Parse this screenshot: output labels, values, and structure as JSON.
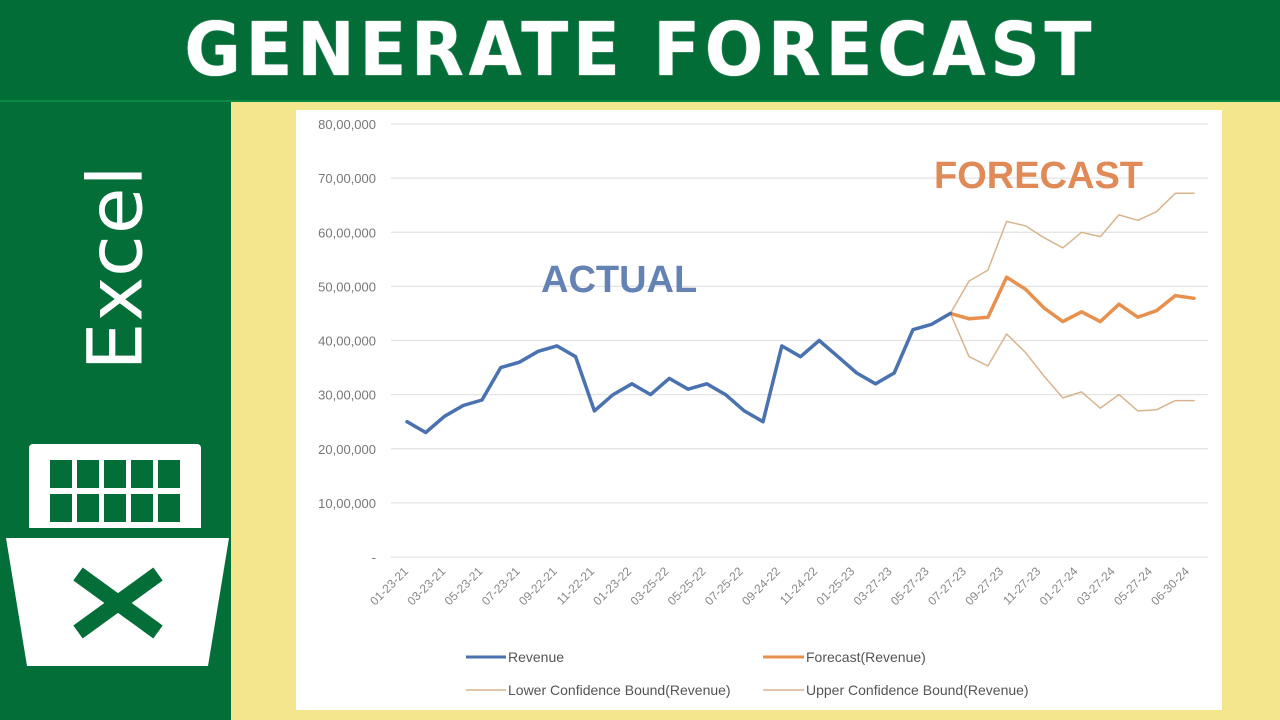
{
  "banner": {
    "title": "GENERATE FORECAST"
  },
  "sidebar": {
    "app_name": "Excel",
    "logo_icon": "excel-logo-icon"
  },
  "annotations": {
    "actual": "ACTUAL",
    "forecast": "FORECAST"
  },
  "colors": {
    "banner_bg": "#036d38",
    "background": "#f3e68c",
    "revenue": "#4a72b0",
    "forecast": "#e8904e",
    "bounds": "#d8b48e",
    "actual_label": "#6482b4",
    "forecast_label": "#e08a58"
  },
  "legend": {
    "revenue": "Revenue",
    "forecast": "Forecast(Revenue)",
    "lower": "Lower Confidence Bound(Revenue)",
    "upper": "Upper Confidence Bound(Revenue)"
  },
  "chart_data": {
    "type": "line",
    "title": "",
    "xlabel": "",
    "ylabel": "",
    "ylim": [
      0,
      8000000
    ],
    "grid": true,
    "legend_position": "bottom",
    "y_ticks": [
      "-",
      "10,00,000",
      "20,00,000",
      "30,00,000",
      "40,00,000",
      "50,00,000",
      "60,00,000",
      "70,00,000",
      "80,00,000"
    ],
    "x_tick_labels": [
      "01-23-21",
      "03-23-21",
      "05-23-21",
      "07-23-21",
      "09-22-21",
      "11-22-21",
      "01-23-22",
      "03-25-22",
      "05-25-22",
      "07-25-22",
      "09-24-22",
      "11-24-22",
      "01-25-23",
      "03-27-23",
      "05-27-23",
      "07-27-23",
      "09-27-23",
      "11-27-23",
      "01-27-24",
      "03-27-24",
      "05-27-24",
      "06-30-24"
    ],
    "point_count": 43,
    "series": [
      {
        "name": "Revenue",
        "start_index": 0,
        "values": [
          2500000,
          2300000,
          2600000,
          2800000,
          2900000,
          3500000,
          3600000,
          3800000,
          3900000,
          3700000,
          2700000,
          3000000,
          3200000,
          3000000,
          3300000,
          3100000,
          3200000,
          3000000,
          2700000,
          2500000,
          3900000,
          3700000,
          4000000,
          3700000,
          3400000,
          3200000,
          3400000,
          4200000,
          4300000,
          4500000
        ]
      },
      {
        "name": "Forecast(Revenue)",
        "start_index": 29,
        "values": [
          4500000,
          4400000,
          4430000,
          5170000,
          4950000,
          4600000,
          4350000,
          4530000,
          4350000,
          4670000,
          4430000,
          4550000,
          4830000,
          4780000
        ]
      },
      {
        "name": "Lower Confidence Bound(Revenue)",
        "start_index": 29,
        "values": [
          4500000,
          3700000,
          3530000,
          4120000,
          3780000,
          3340000,
          2940000,
          3050000,
          2750000,
          3000000,
          2700000,
          2720000,
          2890000,
          2890000
        ]
      },
      {
        "name": "Upper Confidence Bound(Revenue)",
        "start_index": 29,
        "values": [
          4500000,
          5100000,
          5300000,
          6200000,
          6120000,
          5900000,
          5710000,
          6000000,
          5920000,
          6320000,
          6220000,
          6380000,
          6720000,
          6720000
        ]
      }
    ]
  }
}
